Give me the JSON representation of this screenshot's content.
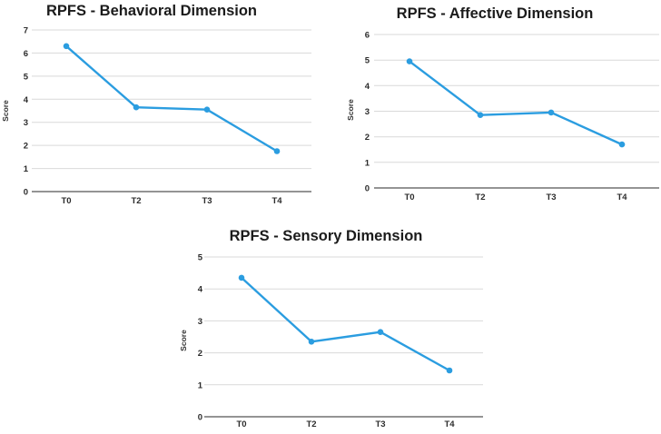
{
  "page": {
    "background": "#ffffff"
  },
  "colors": {
    "line": "#2B9DE0",
    "marker": "#2B9DE0",
    "grid": "#D9D9D9",
    "axis": "#707070",
    "title_text": "#1B1B1B",
    "tick_text": "#2B2B2B",
    "ylabel_text": "#333333"
  },
  "chart_data": [
    {
      "type": "line",
      "title": "RPFS - Behavioral Dimension",
      "ylabel": "Score",
      "xlabel": "",
      "categories": [
        "T0",
        "T2",
        "T3",
        "T4"
      ],
      "values": [
        6.3,
        3.65,
        3.55,
        1.75
      ],
      "ylim": [
        0,
        7
      ],
      "y_tick_step": 1,
      "grid": true,
      "legend": "none",
      "marker": "circle"
    },
    {
      "type": "line",
      "title": "RPFS - Affective Dimension",
      "ylabel": "Score",
      "xlabel": "",
      "categories": [
        "T0",
        "T2",
        "T3",
        "T4"
      ],
      "values": [
        4.95,
        2.85,
        2.95,
        1.7
      ],
      "ylim": [
        0,
        6
      ],
      "y_tick_step": 1,
      "grid": true,
      "legend": "none",
      "marker": "circle"
    },
    {
      "type": "line",
      "title": "RPFS - Sensory Dimension",
      "ylabel": "Score",
      "xlabel": "",
      "categories": [
        "T0",
        "T2",
        "T3",
        "T4"
      ],
      "values": [
        4.35,
        2.35,
        2.65,
        1.45
      ],
      "ylim": [
        0,
        5
      ],
      "y_tick_step": 1,
      "grid": true,
      "legend": "none",
      "marker": "circle"
    }
  ]
}
